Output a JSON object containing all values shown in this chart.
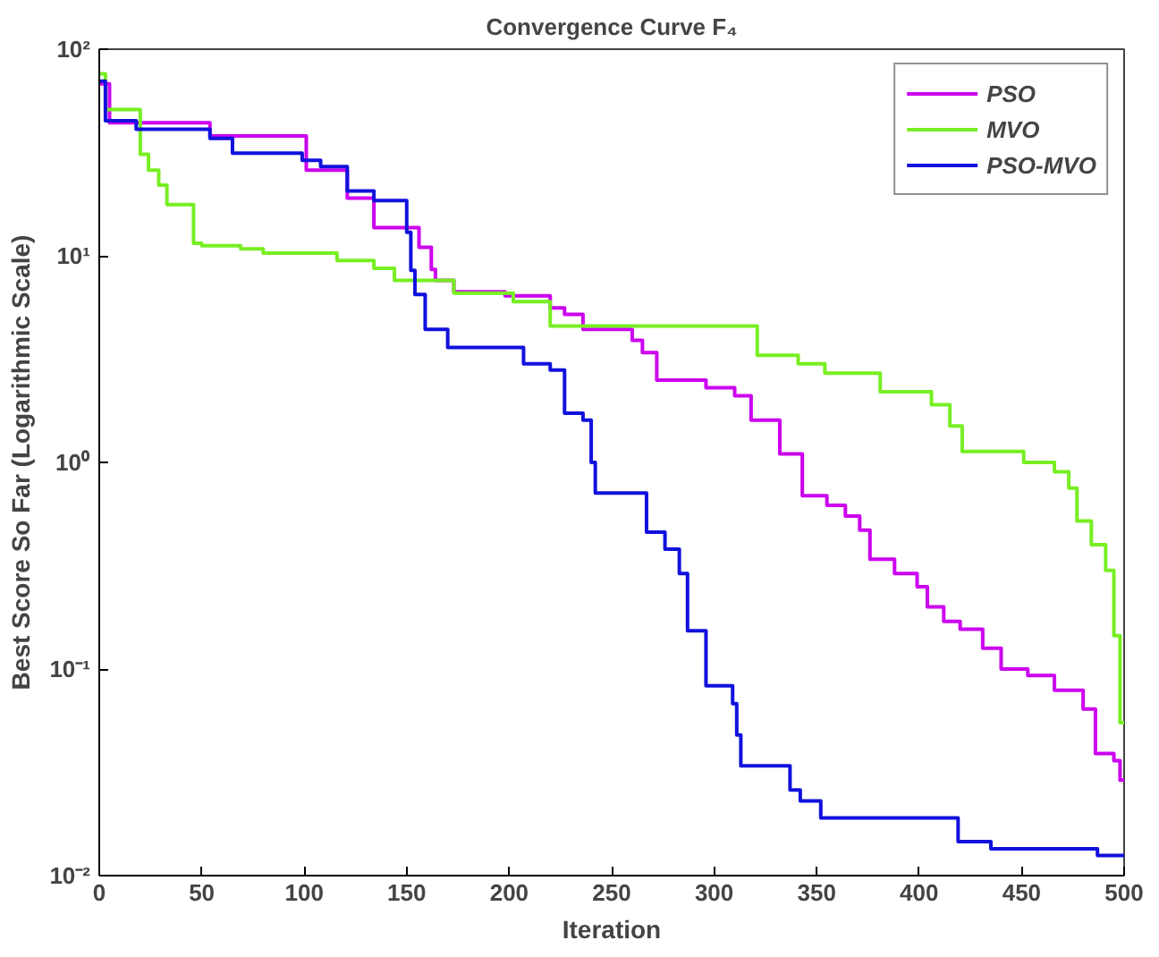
{
  "chart_data": {
    "type": "step",
    "title": "Convergence Curve F₄",
    "xlabel": "Iteration",
    "ylabel": "Best Score So Far (Logarithmic Scale)",
    "log": "y",
    "grid": false,
    "legend": "top right",
    "line_style": "solid",
    "marker": "none",
    "xlim": [
      0,
      500
    ],
    "ylim": [
      0.01,
      100
    ],
    "xticks": [
      0,
      50,
      100,
      150,
      200,
      250,
      300,
      350,
      400,
      450,
      500
    ],
    "yticks": [
      {
        "value": 0.01,
        "label": "10⁻²"
      },
      {
        "value": 0.1,
        "label": "10⁻¹"
      },
      {
        "value": 1,
        "label": "10⁰"
      },
      {
        "value": 10,
        "label": "10¹"
      },
      {
        "value": 100,
        "label": "10²"
      }
    ],
    "series": [
      {
        "name": "PSO",
        "color": "#cc00ee",
        "x": [
          0,
          5,
          54,
          101,
          121,
          134,
          156,
          162,
          164,
          173,
          198,
          220,
          227,
          236,
          260,
          265,
          272,
          296,
          310,
          318,
          332,
          343,
          355,
          364,
          371,
          376,
          388,
          399,
          404,
          412,
          420,
          431,
          440,
          453,
          466,
          480,
          486,
          495,
          498,
          500
        ],
        "values": [
          68,
          44,
          38,
          26,
          19,
          13.7,
          11,
          8.6,
          7.6,
          6.7,
          6.4,
          5.6,
          5.2,
          4.4,
          3.9,
          3.4,
          2.5,
          2.3,
          2.1,
          1.6,
          1.1,
          0.69,
          0.62,
          0.55,
          0.47,
          0.34,
          0.29,
          0.25,
          0.2,
          0.17,
          0.156,
          0.126,
          0.1,
          0.093,
          0.079,
          0.064,
          0.039,
          0.036,
          0.029,
          0.029
        ]
      },
      {
        "name": "MVO",
        "color": "#77ee22",
        "x": [
          0,
          3,
          20,
          24,
          29,
          33,
          46,
          50,
          69,
          80,
          116,
          134,
          144,
          173,
          202,
          220,
          321,
          341,
          354,
          381,
          406,
          415,
          421,
          451,
          466,
          473,
          477,
          484,
          491,
          495,
          498,
          500
        ],
        "values": [
          76,
          51,
          31,
          26,
          22,
          17.7,
          11.5,
          11.2,
          10.8,
          10.3,
          9.5,
          8.7,
          7.6,
          6.6,
          6.0,
          4.57,
          3.3,
          3.0,
          2.7,
          2.2,
          1.9,
          1.5,
          1.13,
          1.0,
          0.9,
          0.75,
          0.52,
          0.4,
          0.3,
          0.145,
          0.055,
          0.055
        ]
      },
      {
        "name": "PSO-MVO",
        "color": "#1111dd",
        "x": [
          0,
          3,
          18,
          54,
          65,
          99,
          108,
          121,
          134,
          150,
          152,
          154,
          159,
          170,
          207,
          220,
          227,
          236,
          240,
          242,
          267,
          276,
          283,
          287,
          296,
          309,
          311,
          313,
          337,
          342,
          352,
          419,
          435,
          487,
          500
        ],
        "values": [
          70,
          45,
          41,
          37,
          31.4,
          29,
          27,
          20.6,
          18.5,
          13,
          8.5,
          6.5,
          4.4,
          3.6,
          3.0,
          2.8,
          1.73,
          1.6,
          1.0,
          0.71,
          0.46,
          0.38,
          0.29,
          0.153,
          0.083,
          0.068,
          0.048,
          0.034,
          0.026,
          0.023,
          0.019,
          0.0146,
          0.0135,
          0.0125,
          0.0125
        ]
      }
    ]
  }
}
